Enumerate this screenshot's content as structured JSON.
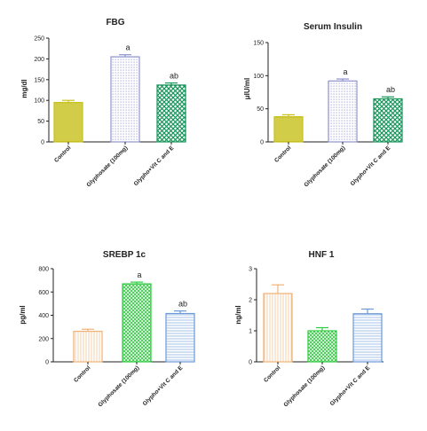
{
  "chart_data": [
    {
      "type": "bar",
      "title": "FBG",
      "ylabel": "mg/dl",
      "ylim": [
        0,
        250
      ],
      "yticks": [
        "0",
        "50",
        "100",
        "150",
        "200",
        "250"
      ],
      "categories": [
        "Control",
        "Glyphosate (100mg)",
        "Glypho+Vit C and E"
      ],
      "values": [
        95,
        205,
        137
      ],
      "errors": [
        5,
        5,
        5
      ],
      "annotations": [
        "",
        "a",
        "ab"
      ],
      "colors": [
        "#c8c21b",
        "#8f92cf",
        "#17955a"
      ]
    },
    {
      "type": "bar",
      "title": "Serum Insulin",
      "ylabel": "μIU/ml",
      "ylim": [
        0,
        150
      ],
      "yticks": [
        "0",
        "50",
        "100",
        "150"
      ],
      "categories": [
        "Control",
        "Glyphosate (100mg)",
        "Glypho+Vit C and E"
      ],
      "values": [
        38,
        92,
        65
      ],
      "errors": [
        3,
        3,
        3
      ],
      "annotations": [
        "",
        "a",
        "ab"
      ],
      "colors": [
        "#c8c21b",
        "#8f92cf",
        "#17955a"
      ]
    },
    {
      "type": "bar",
      "title": "SREBP 1c",
      "ylabel": "pg/ml",
      "ylim": [
        0,
        800
      ],
      "yticks": [
        "0",
        "200",
        "400",
        "600",
        "800"
      ],
      "categories": [
        "Control",
        "Glyphosate (100mg)",
        "Glypho+Vit C and E"
      ],
      "values": [
        262,
        670,
        415
      ],
      "errors": [
        18,
        15,
        22
      ],
      "annotations": [
        "",
        "a",
        "ab"
      ],
      "colors": [
        "#f0b276",
        "#2dcc3e",
        "#6a9ad8"
      ]
    },
    {
      "type": "bar",
      "title": "HNF 1",
      "ylabel": "ng/ml",
      "ylim": [
        0,
        3
      ],
      "yticks": [
        "0",
        "1",
        "2",
        "3"
      ],
      "categories": [
        "Control",
        "Glyphosate (100mg)",
        "Glypho+Vit C and E"
      ],
      "values": [
        2.2,
        1.0,
        1.55
      ],
      "errors": [
        0.28,
        0.1,
        0.15
      ],
      "annotations": [
        "",
        "",
        ""
      ],
      "colors": [
        "#f0b276",
        "#2dcc3e",
        "#6a9ad8"
      ]
    }
  ]
}
